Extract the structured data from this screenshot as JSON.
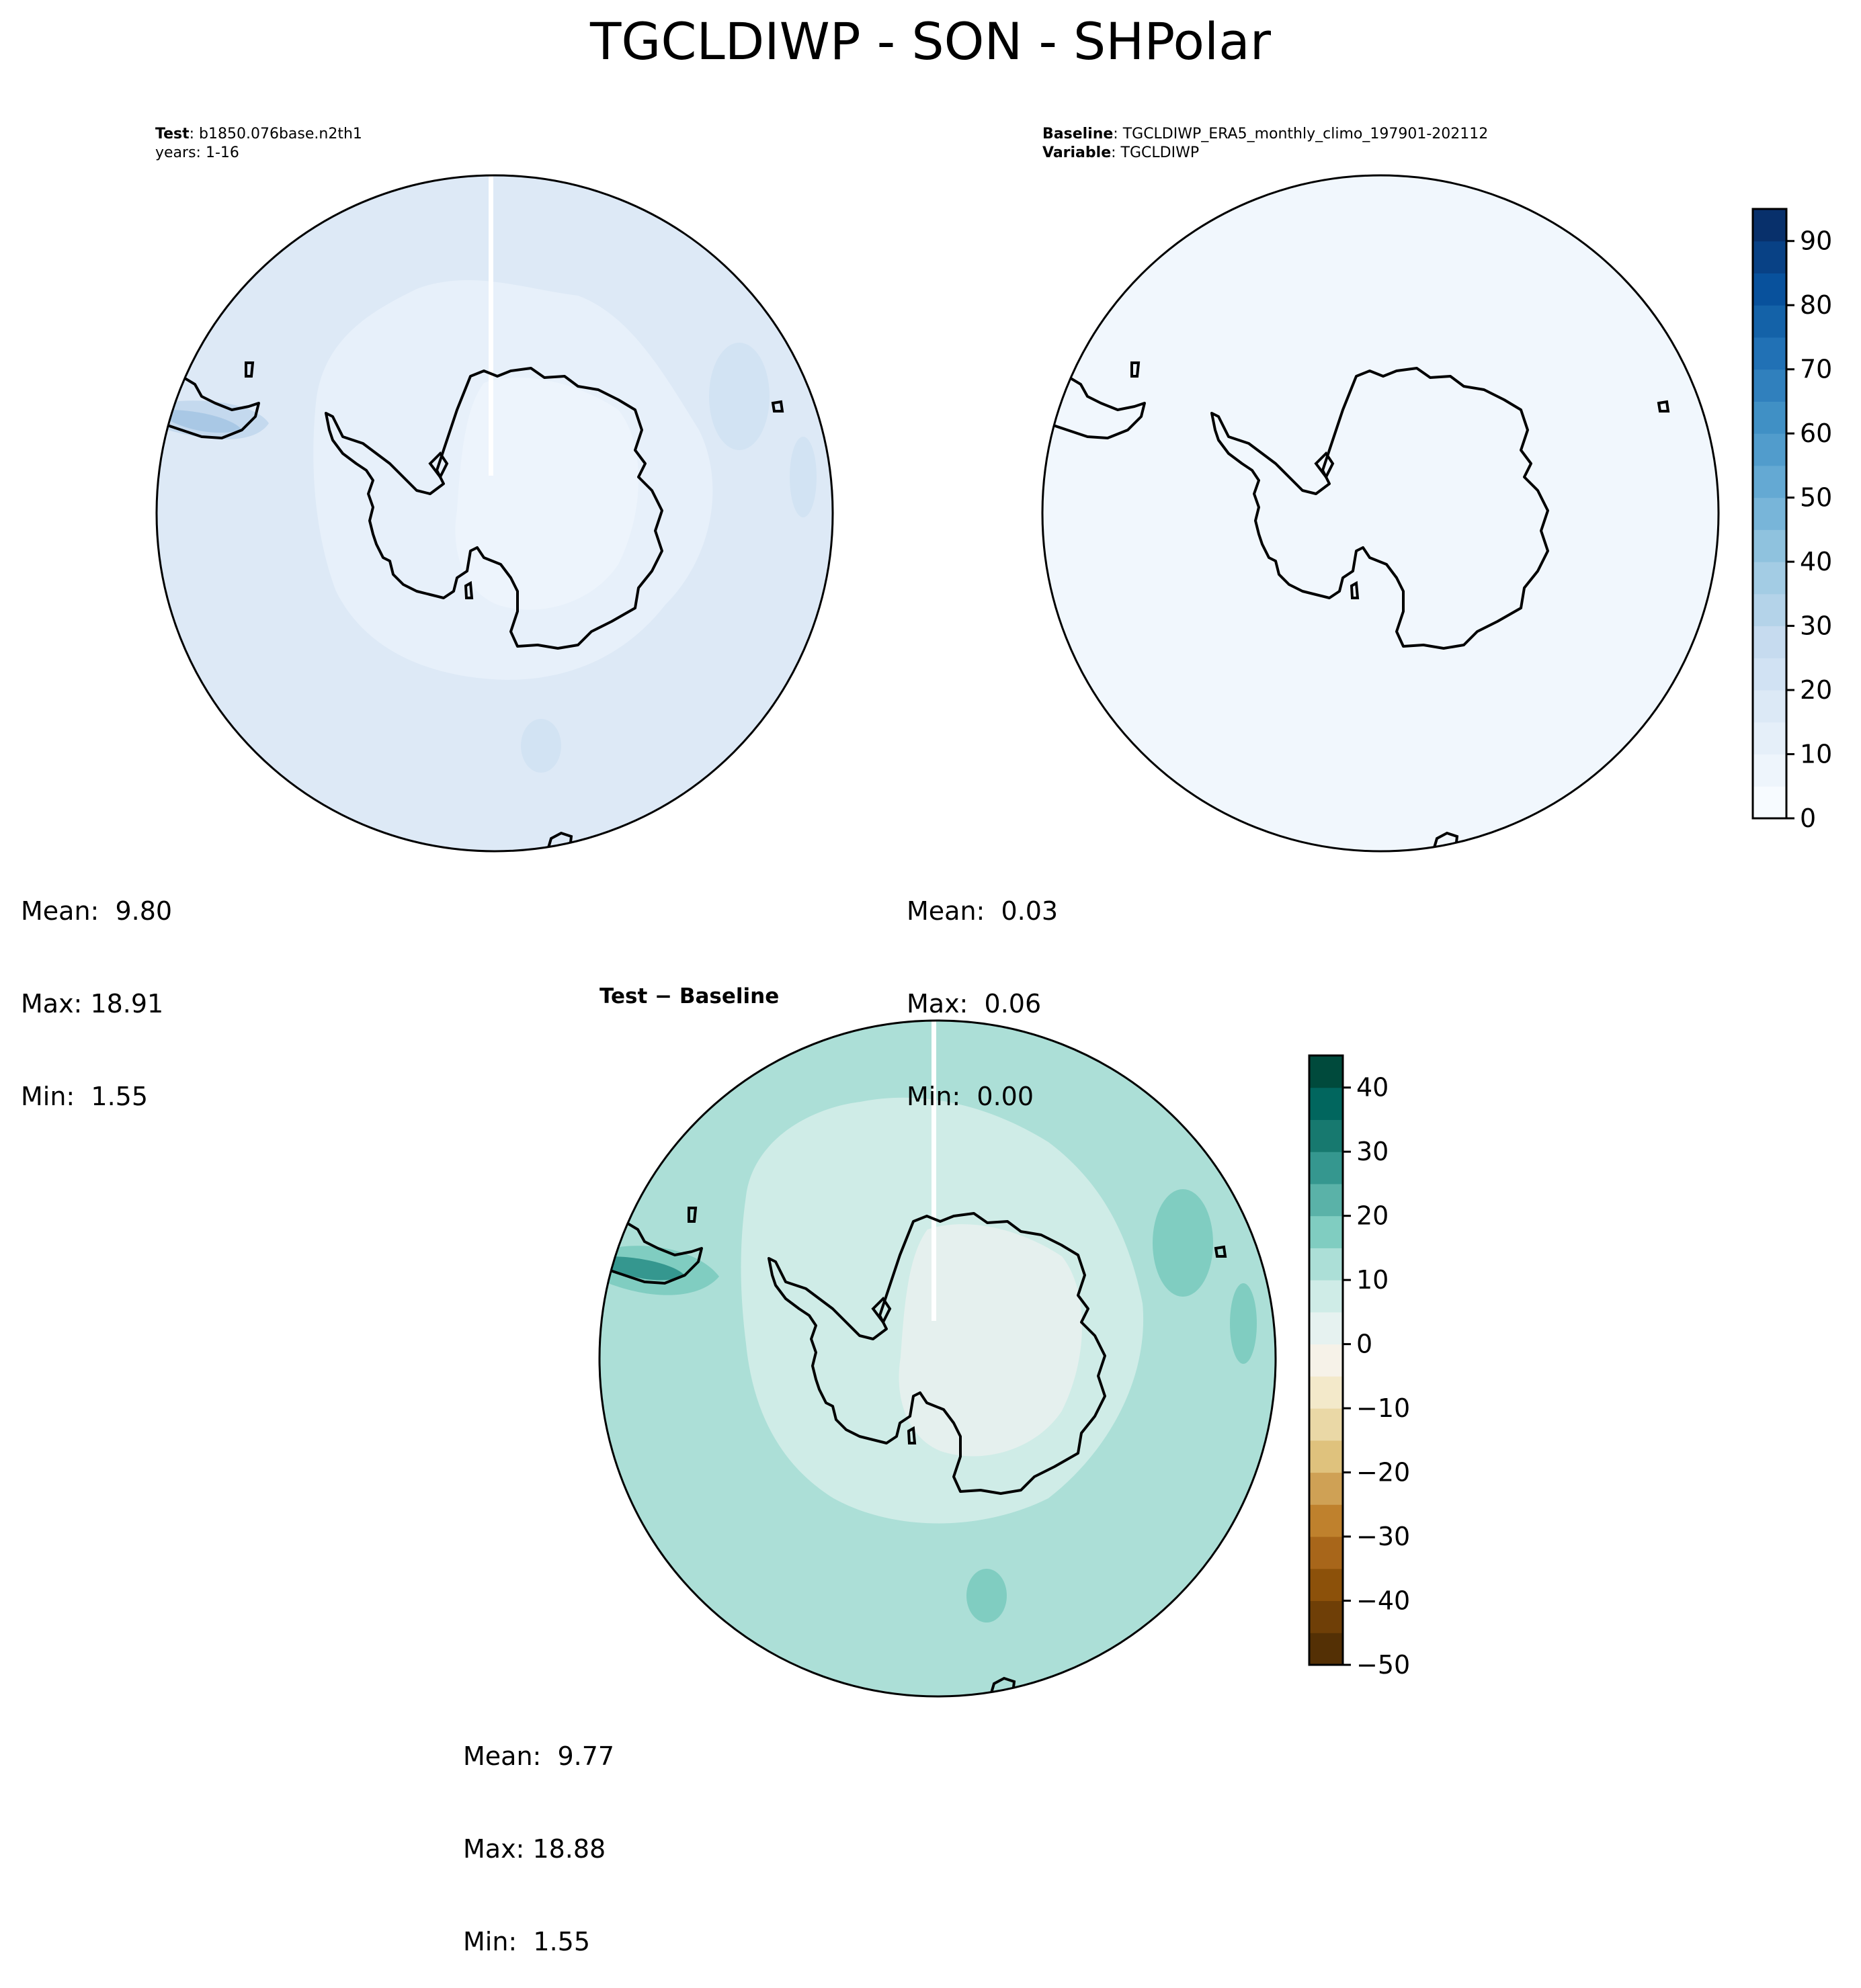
{
  "suptitle": "TGCLDIWP - SON - SHPolar",
  "panels": {
    "test": {
      "header_label": "Test",
      "header_value": "b1850.076base.n2th1",
      "header_line2": "years: 1-16",
      "mean": "Mean:  9.80",
      "max": "Max: 18.91",
      "min": "Min:  1.55",
      "fill": "#dde9f6",
      "inner_fill": "#edf4fc"
    },
    "baseline": {
      "header_label": "Baseline",
      "header_value": "TGCLDIWP_ERA5_monthly_climo_197901-202112",
      "header_label2": "Variable",
      "header_value2": "TGCLDIWP",
      "mean": "Mean:  0.03",
      "max": "Max:  0.06",
      "min": "Min:  0.00",
      "fill": "#f1f7fd"
    },
    "diff": {
      "title": "Test − Baseline",
      "mean": "Mean:  9.77",
      "max": "Max: 18.88",
      "min": "Min:  1.55",
      "fill": "#acdfd7",
      "inner_fill": "#cfece7",
      "core_fill": "#e5f0ee"
    }
  },
  "chart_data": [
    {
      "type": "heatmap",
      "name": "Test",
      "projection": "south-polar-stereographic",
      "stats": {
        "mean": 9.8,
        "max": 18.91,
        "min": 1.55
      },
      "colormap": "Blues",
      "levels": [
        0,
        5,
        10,
        15,
        20,
        25,
        30,
        35,
        40,
        45,
        50,
        55,
        60,
        65,
        70,
        75,
        80,
        85,
        90,
        95
      ]
    },
    {
      "type": "heatmap",
      "name": "Baseline",
      "projection": "south-polar-stereographic",
      "stats": {
        "mean": 0.03,
        "max": 0.06,
        "min": 0.0
      },
      "colormap": "Blues",
      "colorbar": {
        "ticks": [
          "0",
          "10",
          "20",
          "30",
          "40",
          "50",
          "60",
          "70",
          "80",
          "90"
        ],
        "tick_values": [
          0,
          10,
          20,
          30,
          40,
          50,
          60,
          70,
          80,
          90
        ],
        "range": [
          0,
          95
        ],
        "colors": [
          "#f7fbff",
          "#eef5fc",
          "#e5eff9",
          "#dce9f6",
          "#d1e2f3",
          "#c6dbef",
          "#b4d3e9",
          "#a3cce4",
          "#8fc2de",
          "#78b5d9",
          "#64a9d3",
          "#519ccc",
          "#4090c5",
          "#3080bd",
          "#2171b5",
          "#1462a8",
          "#08519c",
          "#084185",
          "#08306b"
        ]
      }
    },
    {
      "type": "heatmap",
      "name": "Test − Baseline",
      "projection": "south-polar-stereographic",
      "stats": {
        "mean": 9.77,
        "max": 18.88,
        "min": 1.55
      },
      "colormap": "BrBG",
      "colorbar": {
        "ticks": [
          "40",
          "30",
          "20",
          "10",
          "0",
          "−10",
          "−20",
          "−30",
          "−40",
          "−50"
        ],
        "tick_values": [
          40,
          30,
          20,
          10,
          0,
          -10,
          -20,
          -30,
          -40,
          -50
        ],
        "range": [
          -50,
          45
        ],
        "colors": [
          "#543005",
          "#6f3f07",
          "#8c510a",
          "#a8661a",
          "#bf812d",
          "#cfa155",
          "#dfc27d",
          "#ead8a6",
          "#f3e9ca",
          "#f6f2e8",
          "#e6f2f0",
          "#cfece7",
          "#acdfd7",
          "#80cdc1",
          "#5ab2a8",
          "#35978f",
          "#17796f",
          "#01665e",
          "#004a3c"
        ]
      }
    }
  ]
}
